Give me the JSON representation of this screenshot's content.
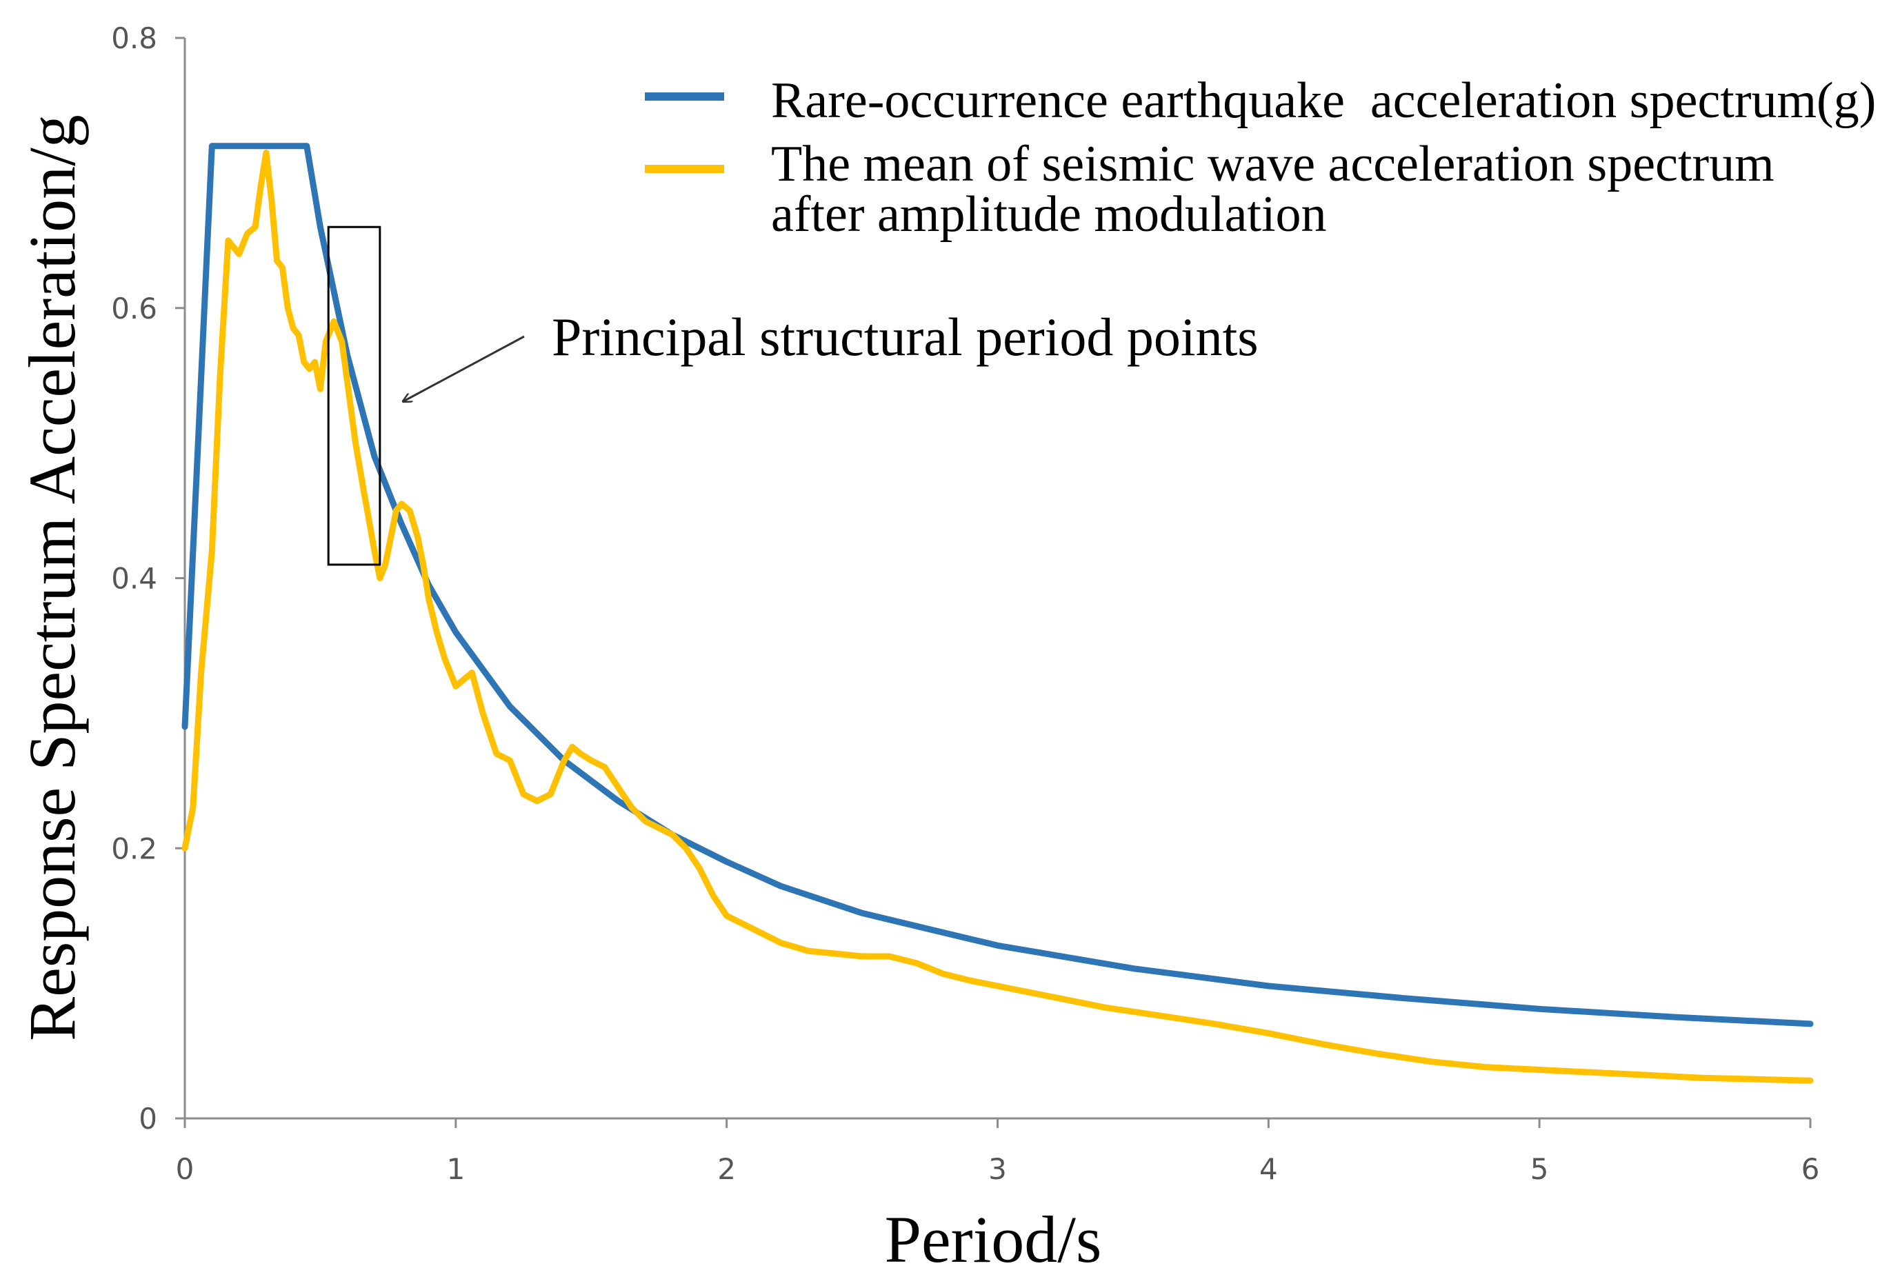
{
  "chart_data": {
    "type": "line",
    "title": "",
    "xlabel": "Period/s",
    "ylabel": "Response Spectrum Acceleration/g",
    "xlim": [
      0,
      6
    ],
    "ylim": [
      0,
      0.8
    ],
    "xticks": [
      0,
      1,
      2,
      3,
      4,
      5,
      6
    ],
    "xtick_labels": [
      "0",
      "1",
      "2",
      "3",
      "4",
      "5",
      "6"
    ],
    "yticks": [
      0,
      0.2,
      0.4,
      0.6,
      0.8
    ],
    "ytick_labels": [
      "0",
      "0.2",
      "0.4",
      "0.6",
      "0.8"
    ],
    "grid": false,
    "legend_position": "top-right",
    "series": [
      {
        "name": "Rare-occurrence earthquake  acceleration spectrum(g)",
        "color": "#2e75b6",
        "x": [
          0,
          0.1,
          0.45,
          0.5,
          0.6,
          0.7,
          0.8,
          0.9,
          1.0,
          1.2,
          1.4,
          1.6,
          1.8,
          2.0,
          2.2,
          2.5,
          3.0,
          3.5,
          4.0,
          4.5,
          5.0,
          5.5,
          6.0
        ],
        "y": [
          0.29,
          0.72,
          0.72,
          0.66,
          0.565,
          0.49,
          0.44,
          0.395,
          0.36,
          0.305,
          0.265,
          0.235,
          0.21,
          0.19,
          0.172,
          0.152,
          0.128,
          0.111,
          0.098,
          0.089,
          0.081,
          0.075,
          0.07
        ]
      },
      {
        "name": "The mean of seismic wave acceleration spectrum after amplitude modulation",
        "name_lines": [
          "The mean of seismic wave acceleration spectrum",
          "after amplitude modulation"
        ],
        "color": "#ffc000",
        "x": [
          0,
          0.03,
          0.06,
          0.1,
          0.13,
          0.16,
          0.2,
          0.23,
          0.26,
          0.28,
          0.3,
          0.32,
          0.34,
          0.36,
          0.38,
          0.4,
          0.42,
          0.44,
          0.46,
          0.48,
          0.5,
          0.52,
          0.55,
          0.58,
          0.6,
          0.63,
          0.66,
          0.7,
          0.72,
          0.74,
          0.76,
          0.78,
          0.8,
          0.83,
          0.86,
          0.88,
          0.9,
          0.93,
          0.96,
          1.0,
          1.03,
          1.06,
          1.1,
          1.15,
          1.2,
          1.25,
          1.3,
          1.35,
          1.4,
          1.43,
          1.46,
          1.5,
          1.55,
          1.6,
          1.65,
          1.7,
          1.75,
          1.8,
          1.85,
          1.9,
          1.95,
          2.0,
          2.1,
          2.2,
          2.3,
          2.4,
          2.5,
          2.6,
          2.7,
          2.8,
          2.9,
          3.0,
          3.2,
          3.4,
          3.6,
          3.8,
          4.0,
          4.2,
          4.4,
          4.6,
          4.8,
          5.0,
          5.2,
          5.4,
          5.6,
          5.8,
          6.0
        ],
        "y": [
          0.2,
          0.23,
          0.33,
          0.42,
          0.55,
          0.65,
          0.64,
          0.655,
          0.66,
          0.69,
          0.715,
          0.68,
          0.635,
          0.63,
          0.6,
          0.585,
          0.58,
          0.56,
          0.555,
          0.56,
          0.54,
          0.575,
          0.59,
          0.575,
          0.545,
          0.5,
          0.465,
          0.42,
          0.4,
          0.41,
          0.43,
          0.45,
          0.455,
          0.45,
          0.43,
          0.41,
          0.385,
          0.36,
          0.34,
          0.32,
          0.325,
          0.33,
          0.3,
          0.27,
          0.265,
          0.24,
          0.235,
          0.24,
          0.265,
          0.275,
          0.27,
          0.265,
          0.26,
          0.245,
          0.23,
          0.22,
          0.215,
          0.21,
          0.2,
          0.185,
          0.165,
          0.15,
          0.14,
          0.13,
          0.124,
          0.122,
          0.12,
          0.12,
          0.115,
          0.107,
          0.102,
          0.098,
          0.09,
          0.082,
          0.076,
          0.07,
          0.063,
          0.055,
          0.048,
          0.042,
          0.038,
          0.036,
          0.034,
          0.032,
          0.03,
          0.029,
          0.028
        ]
      }
    ],
    "annotations": [
      {
        "text": "Principal structural period points",
        "box_x_range": [
          0.53,
          0.72
        ],
        "box_y_range": [
          0.41,
          0.66
        ],
        "arrow_points_to": "box"
      }
    ]
  }
}
